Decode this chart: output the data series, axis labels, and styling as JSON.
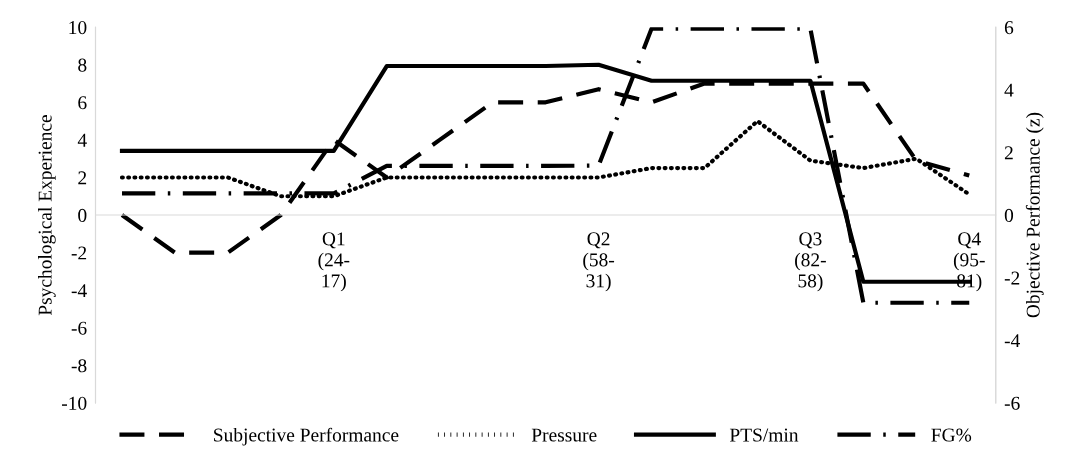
{
  "chart_data": {
    "type": "line",
    "categories": [
      null,
      null,
      null,
      null,
      "Q1\n(24-\n17)",
      null,
      null,
      null,
      null,
      "Q2\n(58-\n31)",
      null,
      null,
      null,
      "Q3\n(82-\n58)",
      null,
      null,
      "Q4\n(95-\n81)"
    ],
    "ylabel": "Psychological Experience",
    "y2label": "Objective Performance (z)",
    "ylim": [
      -10,
      10
    ],
    "yticks": [
      -10,
      -8,
      -6,
      -4,
      -2,
      0,
      2,
      4,
      6,
      8,
      10
    ],
    "y2lim": [
      -6,
      6
    ],
    "y2ticks": [
      -6,
      -4,
      -2,
      0,
      2,
      4,
      6
    ],
    "legend": "bottom",
    "grid": false,
    "marker": "none",
    "series": [
      {
        "name": "Subjective Performance",
        "color": "#000000",
        "line_style": "dashed",
        "values": [
          0,
          -2,
          -2,
          0,
          4,
          2,
          4,
          6,
          6,
          6.7,
          6,
          7,
          7,
          7,
          7,
          2.9,
          2.1
        ]
      },
      {
        "name": "Pressure",
        "color": "#000000",
        "line_style": "dotted",
        "values": [
          2,
          2,
          2,
          1,
          1,
          2,
          2,
          2,
          2,
          2,
          2.5,
          2.5,
          5,
          2.9,
          2.5,
          3,
          1.1
        ]
      },
      {
        "name": "PTS/min",
        "color": "#000000",
        "line_style": "solid",
        "axis": "y2",
        "values": [
          2.05,
          2.05,
          2.05,
          2.05,
          2.05,
          4.76,
          4.76,
          4.76,
          4.76,
          4.8,
          4.29,
          4.29,
          4.29,
          4.29,
          -2.13,
          -2.13,
          -2.13
        ]
      },
      {
        "name": "FG%",
        "color": "#000000",
        "line_style": "dashdot",
        "axis": "y2",
        "values": [
          0.69,
          0.69,
          0.69,
          0.69,
          0.69,
          1.57,
          1.57,
          1.57,
          1.57,
          1.58,
          5.95,
          5.95,
          5.95,
          5.95,
          -2.8,
          -2.8,
          -2.8
        ]
      }
    ]
  }
}
